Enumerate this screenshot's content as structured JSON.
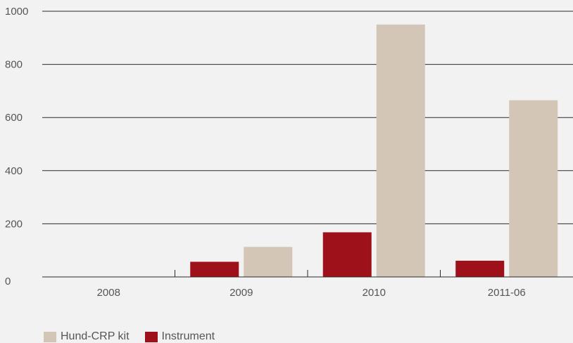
{
  "chart_data": {
    "type": "bar",
    "categories": [
      "2008",
      "2009",
      "2010",
      "2011-06"
    ],
    "series": [
      {
        "name": "Instrument",
        "color": "#9e111b",
        "values": [
          0,
          57,
          168,
          61
        ]
      },
      {
        "name": "Hund-CRP kit",
        "color": "#d3c6b7",
        "values": [
          0,
          113,
          950,
          665
        ]
      }
    ],
    "y_ticks": [
      "0",
      "200",
      "400",
      "600",
      "800",
      "1000"
    ],
    "ylim": [
      0,
      1000
    ],
    "grid": true,
    "legend_position": "bottom-left",
    "legend": [
      {
        "label": "Hund-CRP kit",
        "color": "#d3c6b7"
      },
      {
        "label": "Instrument",
        "color": "#9e111b"
      }
    ],
    "title": "",
    "xlabel": "",
    "ylabel": ""
  }
}
